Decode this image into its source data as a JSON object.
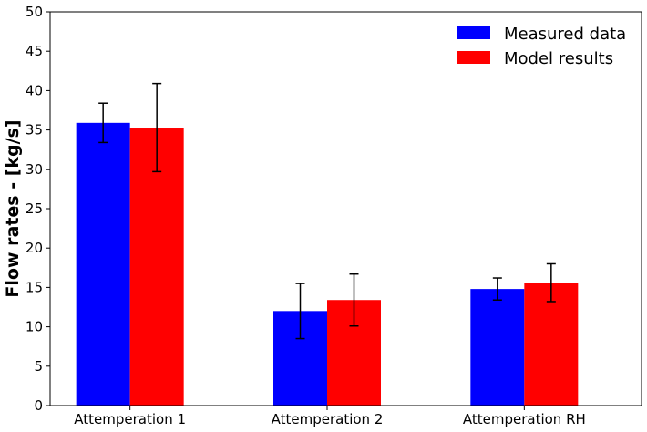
{
  "chart_data": {
    "type": "bar",
    "title": "",
    "xlabel": "",
    "ylabel": "Flow rates - [kg/s]",
    "ylim": [
      0,
      50
    ],
    "yticks": [
      0,
      5,
      10,
      15,
      20,
      25,
      30,
      35,
      40,
      45,
      50
    ],
    "categories": [
      "Attemperation 1",
      "Attemperation 2",
      "Attemperation RH"
    ],
    "series": [
      {
        "name": "Measured data",
        "color": "#0000ff",
        "values": [
          35.9,
          12.0,
          14.8
        ],
        "errors": [
          2.5,
          3.5,
          1.4
        ]
      },
      {
        "name": "Model results",
        "color": "#ff0000",
        "values": [
          35.3,
          13.4,
          15.6
        ],
        "errors": [
          5.6,
          3.3,
          2.4
        ]
      }
    ],
    "legend_position": "top-right",
    "grid": false
  }
}
